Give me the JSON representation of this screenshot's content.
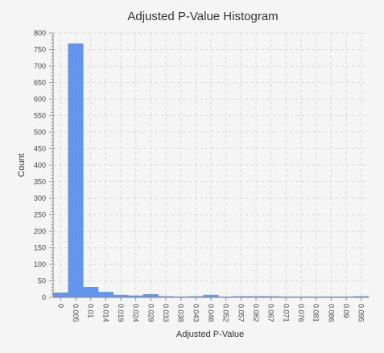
{
  "chart_data": {
    "type": "bar",
    "title": "Adjusted P-Value Histogram",
    "xlabel": "Adjusted P-Value",
    "ylabel": "Count",
    "categories": [
      "0",
      "0.005",
      "0.01",
      "0.014",
      "0.019",
      "0.024",
      "0.029",
      "0.033",
      "0.038",
      "0.043",
      "0.048",
      "0.052",
      "0.057",
      "0.062",
      "0.067",
      "0.071",
      "0.076",
      "0.081",
      "0.086",
      "0.09",
      "0.095"
    ],
    "values": [
      14,
      768,
      31,
      16,
      7,
      5,
      9,
      3,
      2,
      3,
      7,
      2,
      3,
      3,
      3,
      2,
      2,
      2,
      2,
      2,
      3
    ],
    "ylim": [
      0,
      800
    ],
    "yticks": [
      0,
      50,
      100,
      150,
      200,
      250,
      300,
      350,
      400,
      450,
      500,
      550,
      600,
      650,
      700,
      750,
      800
    ],
    "grid": true,
    "bar_color": "#6495ed",
    "background_color": "#f5f5f5"
  }
}
